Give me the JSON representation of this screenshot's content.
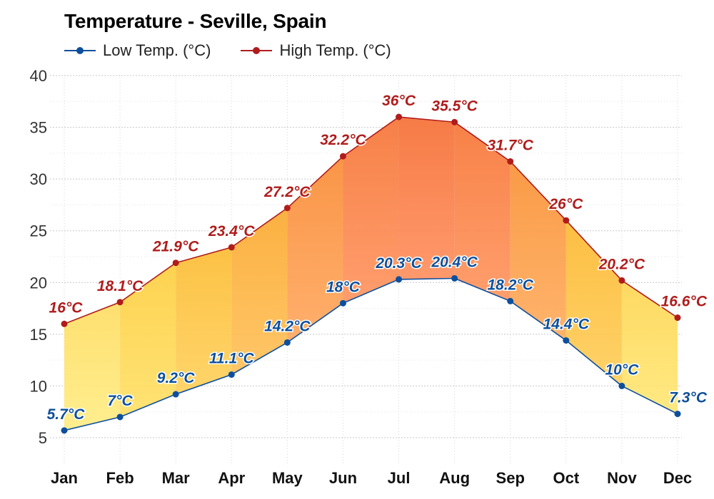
{
  "chart_data": {
    "type": "area",
    "title": "Temperature - Seville, Spain",
    "categories": [
      "Jan",
      "Feb",
      "Mar",
      "Apr",
      "May",
      "Jun",
      "Jul",
      "Aug",
      "Sep",
      "Oct",
      "Nov",
      "Dec"
    ],
    "series": [
      {
        "name": "Low Temp. (°C)",
        "color": "#0d4f9c",
        "values": [
          5.7,
          7,
          9.2,
          11.1,
          14.2,
          18,
          20.3,
          20.4,
          18.2,
          14.4,
          10,
          7.3
        ],
        "labels": [
          "5.7°C",
          "7°C",
          "9.2°C",
          "11.1°C",
          "14.2°C",
          "18°C",
          "20.3°C",
          "20.4°C",
          "18.2°C",
          "14.4°C",
          "10°C",
          "7.3°C"
        ]
      },
      {
        "name": "High Temp. (°C)",
        "color": "#b01c1c",
        "values": [
          16,
          18.1,
          21.9,
          23.4,
          27.2,
          32.2,
          36,
          35.5,
          31.7,
          26,
          20.2,
          16.6
        ],
        "labels": [
          "16°C",
          "18.1°C",
          "21.9°C",
          "23.4°C",
          "27.2°C",
          "32.2°C",
          "36°C",
          "35.5°C",
          "31.7°C",
          "26°C",
          "20.2°C",
          "16.6°C"
        ]
      }
    ],
    "y_ticks": [
      5,
      10,
      15,
      20,
      25,
      30,
      35,
      40
    ],
    "ylim": [
      5,
      40
    ],
    "legend_position": "top-left",
    "grid": true
  }
}
